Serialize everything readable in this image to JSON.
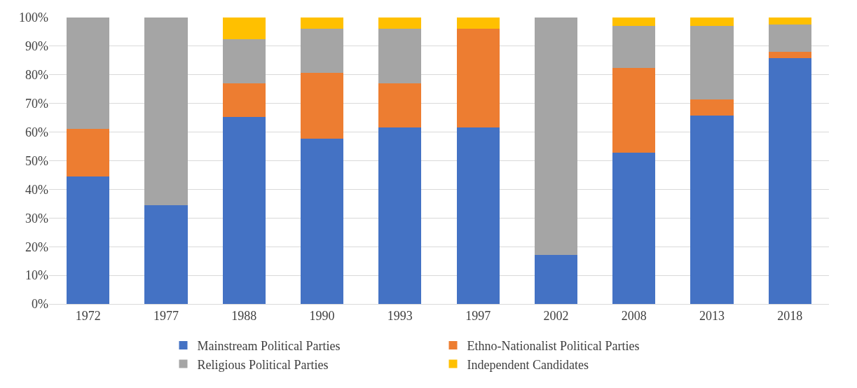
{
  "chart_data": {
    "type": "bar",
    "stacked": true,
    "categories": [
      "1972",
      "1977",
      "1988",
      "1990",
      "1993",
      "1997",
      "2002",
      "2008",
      "2013",
      "2018"
    ],
    "series": [
      {
        "name": "Mainstream Political Parties",
        "color": "#4472c4",
        "values": [
          44.4,
          34.5,
          65.4,
          57.7,
          61.5,
          61.5,
          17,
          52.9,
          65.7,
          85.7
        ]
      },
      {
        "name": "Ethno-Nationalist Political Parties",
        "color": "#ed7d31",
        "values": [
          16.7,
          null,
          11.5,
          23.1,
          15.4,
          34.7,
          null,
          29.5,
          5.7,
          2.4
        ]
      },
      {
        "name": "Religious Political Parties",
        "color": "#a5a5a5",
        "values": [
          38.9,
          65.5,
          15.4,
          15.4,
          19.3,
          null,
          83,
          14.7,
          25.7,
          9.5
        ]
      },
      {
        "name": "Independent Candidates",
        "color": "#ffc000",
        "values": [
          null,
          null,
          7.7,
          3.8,
          3.8,
          3.8,
          null,
          2.9,
          2.9,
          2.4
        ]
      }
    ],
    "ylim": [
      0,
      100
    ],
    "yticks": [
      {
        "value": 0,
        "label": "0%"
      },
      {
        "value": 10,
        "label": "10%"
      },
      {
        "value": 20,
        "label": "20%"
      },
      {
        "value": 30,
        "label": "30%"
      },
      {
        "value": 40,
        "label": "40%"
      },
      {
        "value": 50,
        "label": "50%"
      },
      {
        "value": 60,
        "label": "60%"
      },
      {
        "value": 70,
        "label": "70%"
      },
      {
        "value": 80,
        "label": "80%"
      },
      {
        "value": 90,
        "label": "90%"
      },
      {
        "value": 100,
        "label": "100%"
      }
    ],
    "grid": "y",
    "legend": "bottom"
  }
}
